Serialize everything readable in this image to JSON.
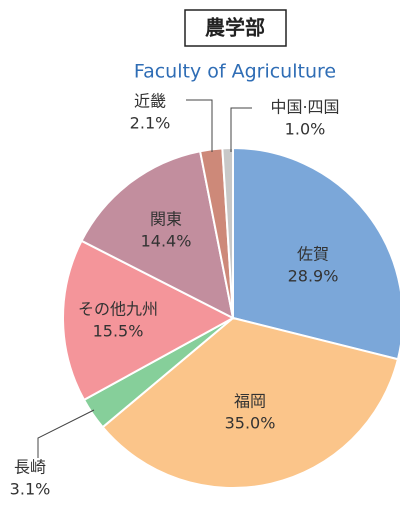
{
  "chart_data": {
    "type": "pie",
    "title": "農学部",
    "subtitle": "Faculty of Agriculture",
    "categories": [
      "佐賀",
      "福岡",
      "長崎",
      "その他九州",
      "関東",
      "近畿",
      "中国·四国"
    ],
    "values": [
      28.9,
      35.0,
      3.1,
      15.5,
      14.4,
      2.1,
      1.0
    ],
    "value_labels": [
      "28.9%",
      "35.0%",
      "3.1%",
      "15.5%",
      "14.4%",
      "2.1%",
      "1.0%"
    ],
    "colors": [
      "#7ba7d9",
      "#fbc58a",
      "#86cf9a",
      "#f4959a",
      "#c28e9e",
      "#cd8979",
      "#c8c8c8"
    ]
  }
}
